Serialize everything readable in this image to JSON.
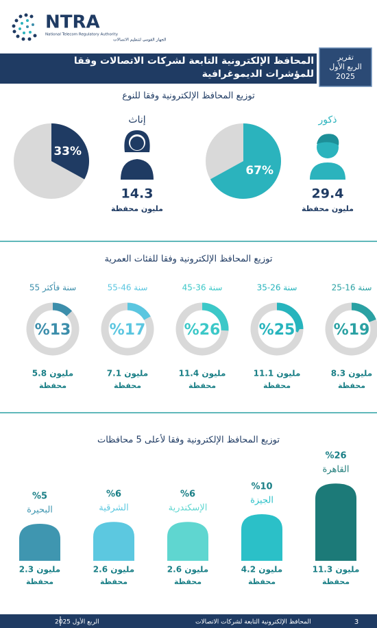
{
  "header": {
    "logo": "NTRA",
    "authority_en": "National Telecom Regulatory Authority",
    "authority_ar": "الجهاز القومي لتنظيم الاتصالات",
    "title": "المحافظ الإلكترونية التابعة لشركات الاتصالات وفقا للمؤشرات الديموغرافية",
    "report_box": [
      "تقرير",
      "الربع الأول",
      "2025"
    ]
  },
  "gender": {
    "type": "pie",
    "title": "توزيع المحافظ الإلكترونية وفقا للنوع",
    "unit": "مليون محفظة",
    "rest_color": "#d9d9d9",
    "items": [
      {
        "name": "ذكور",
        "percent": 67,
        "percent_label": "67%",
        "millions": 29.4,
        "color": "#2bb3bd"
      },
      {
        "name": "إناث",
        "percent": 33,
        "percent_label": "33%",
        "millions": 14.3,
        "color": "#1f3b63"
      }
    ]
  },
  "age": {
    "type": "donut",
    "title": "توزيع المحافظ الإلكترونية وفقا للفئات العمرية",
    "unit": "محفظة",
    "rest_color": "#d9d9d9",
    "items": [
      {
        "name": "25-16 سنة",
        "percent": 19,
        "percent_label": "%19",
        "millions": 8.3,
        "millions_label": "8.3 مليون",
        "color": "#2aa1a3"
      },
      {
        "name": "35-26 سنة",
        "percent": 25,
        "percent_label": "%25",
        "millions": 11.1,
        "millions_label": "11.1 مليون",
        "color": "#27b4bd"
      },
      {
        "name": "45-36 سنة",
        "percent": 26,
        "percent_label": "%26",
        "millions": 11.4,
        "millions_label": "11.4 مليون",
        "color": "#3cc8c8"
      },
      {
        "name": "55-46 سنة",
        "percent": 17,
        "percent_label": "%17",
        "millions": 7.1,
        "millions_label": "7.1 مليون",
        "color": "#5bc6e0"
      },
      {
        "name": "55 سنة فأكثر",
        "percent": 13,
        "percent_label": "%13",
        "millions": 5.8,
        "millions_label": "5.8 مليون",
        "color": "#3c8eab"
      }
    ]
  },
  "governorates": {
    "type": "bar",
    "title": "توزيع المحافظ الإلكترونية وفقا لأعلى 5 محافظات",
    "unit": "محفظة",
    "items": [
      {
        "name": "القاهرة",
        "percent": 26,
        "percent_label": "%26",
        "millions": 11.3,
        "millions_label": "11.3 مليون",
        "color": "#1c7a78"
      },
      {
        "name": "الجيزة",
        "percent": 10,
        "percent_label": "%10",
        "millions": 4.2,
        "millions_label": "4.2 مليون",
        "color": "#2bc0c8"
      },
      {
        "name": "الإسكندرية",
        "percent": 6,
        "percent_label": "%6",
        "millions": 2.6,
        "millions_label": "2.6 مليون",
        "color": "#5fd6d0"
      },
      {
        "name": "الشرقية",
        "percent": 6,
        "percent_label": "%6",
        "millions": 2.6,
        "millions_label": "2.6 مليون",
        "color": "#5cc8e0"
      },
      {
        "name": "البحيرة",
        "percent": 5,
        "percent_label": "%5",
        "millions": 2.3,
        "millions_label": "2.3 مليون",
        "color": "#3f96b0"
      }
    ]
  },
  "footer": {
    "page": "3",
    "title": "المحافظ الإلكترونية التابعة لشركات الاتصالات",
    "period": "الربع الأول 2025"
  }
}
